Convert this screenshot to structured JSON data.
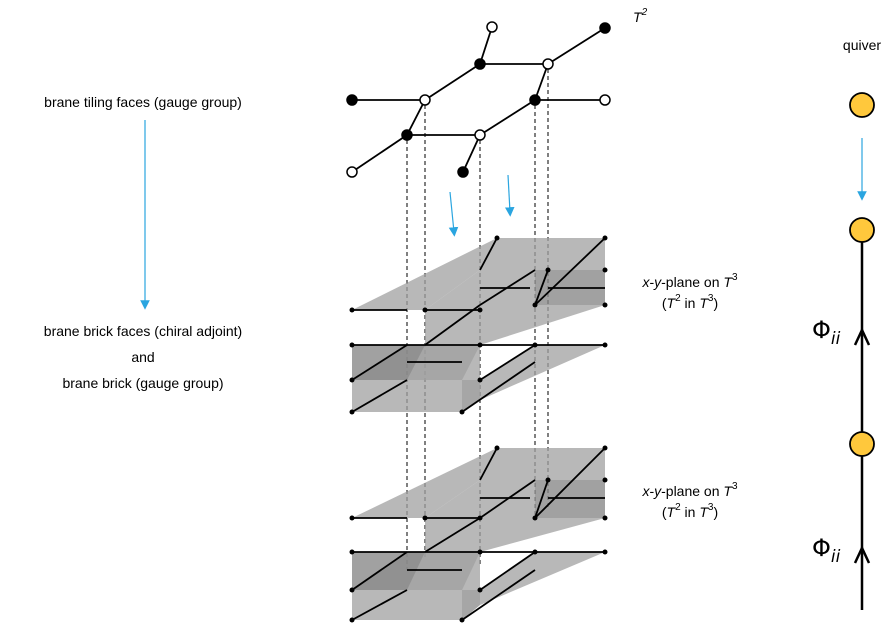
{
  "left": {
    "tiling_label": "brane tiling faces (gauge group)",
    "brick_line1": "brane brick faces (chiral adjoint)",
    "brick_line2": "and",
    "brick_line3": "brane brick (gauge group)"
  },
  "center": {
    "torus_T": "T",
    "torus_exp": "2",
    "planes": [
      {
        "line1_x": "x",
        "line1_dash1": "-",
        "line1_y": "y",
        "line1_rest": "-plane on ",
        "line1_T": "T",
        "line1_exp": "3",
        "line2_open": "(",
        "line2_T": "T",
        "line2_exp": "2",
        "line2_in": " in ",
        "line2_T3": "T",
        "line2_exp3": "3",
        "line2_close": ")"
      },
      {
        "line1_x": "x",
        "line1_dash1": "-",
        "line1_y": "y",
        "line1_rest": "-plane on ",
        "line1_T": "T",
        "line1_exp": "3",
        "line2_open": "(",
        "line2_T": "T",
        "line2_exp": "2",
        "line2_in": " in ",
        "line2_T3": "T",
        "line2_exp3": "3",
        "line2_close": ")"
      }
    ]
  },
  "right": {
    "title": "quiver",
    "phi": "Φ",
    "phi_sub": "ii"
  },
  "colors": {
    "arrow": "#2aa5e0",
    "node_fill": "#ffc83c",
    "node_stroke": "#000000",
    "plane_fill": "#a0a0a0"
  }
}
